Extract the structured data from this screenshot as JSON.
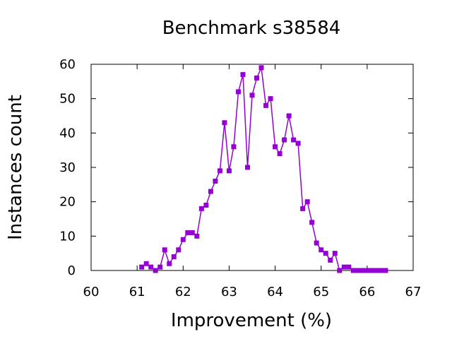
{
  "chart_data": {
    "type": "line",
    "title": "Benchmark s38584",
    "xlabel": "Improvement (%)",
    "ylabel": "Instances count",
    "xlim": [
      60,
      67
    ],
    "ylim": [
      0,
      60
    ],
    "x_ticks": [
      "60",
      "61",
      "62",
      "63",
      "64",
      "65",
      "66",
      "67"
    ],
    "y_ticks": [
      "0",
      "10",
      "20",
      "30",
      "40",
      "50",
      "60"
    ],
    "grid": false,
    "series": [
      {
        "name": "s38584",
        "color": "#9400d3",
        "marker": "square",
        "x": [
          61.1,
          61.2,
          61.3,
          61.4,
          61.5,
          61.6,
          61.7,
          61.8,
          61.9,
          62.0,
          62.1,
          62.2,
          62.3,
          62.4,
          62.5,
          62.6,
          62.7,
          62.8,
          62.9,
          63.0,
          63.1,
          63.2,
          63.3,
          63.4,
          63.5,
          63.6,
          63.7,
          63.8,
          63.9,
          64.0,
          64.1,
          64.2,
          64.3,
          64.4,
          64.5,
          64.6,
          64.7,
          64.8,
          64.9,
          65.0,
          65.1,
          65.2,
          65.3,
          65.4,
          65.5,
          65.6,
          65.7,
          65.8,
          65.9,
          66.0,
          66.1,
          66.2,
          66.3,
          66.4
        ],
        "y": [
          1,
          2,
          1,
          0,
          1,
          6,
          2,
          4,
          6,
          9,
          11,
          11,
          10,
          18,
          19,
          23,
          26,
          29,
          43,
          29,
          36,
          52,
          57,
          30,
          51,
          56,
          59,
          48,
          50,
          36,
          34,
          38,
          45,
          38,
          37,
          18,
          20,
          14,
          8,
          6,
          5,
          3,
          5,
          0,
          1,
          1,
          0,
          0,
          0,
          0,
          0,
          0,
          0,
          0
        ]
      }
    ]
  }
}
